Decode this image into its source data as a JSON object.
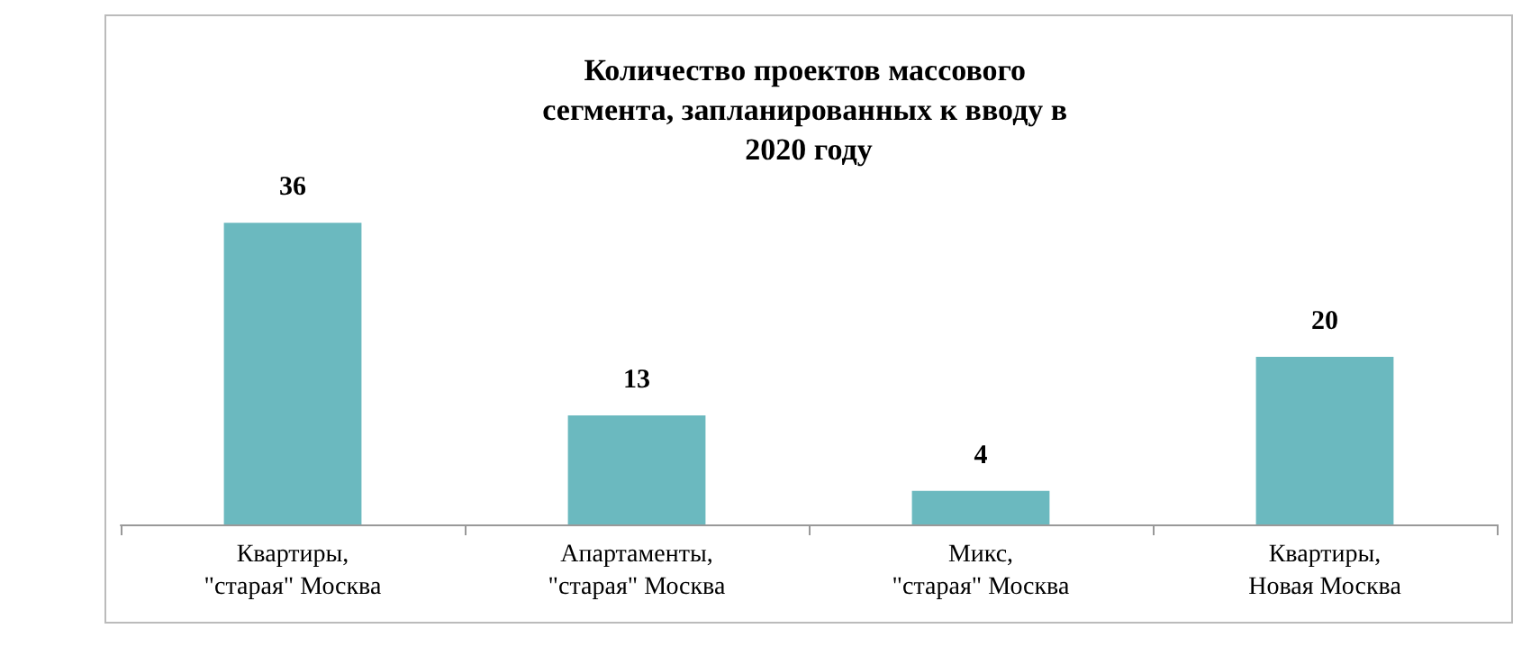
{
  "chart_data": {
    "type": "bar",
    "title": "Количество проектов массового сегмента, запланированных к вводу в 2020 году",
    "categories": [
      "Квартиры,\n\"старая\" Москва",
      "Апартаменты,\n\"старая\" Москва",
      "Микс,\n\"старая\" Москва",
      "Квартиры,\nНовая Москва"
    ],
    "values": [
      36,
      13,
      4,
      20
    ],
    "color": "#6bb9bf",
    "data_labels": true
  }
}
